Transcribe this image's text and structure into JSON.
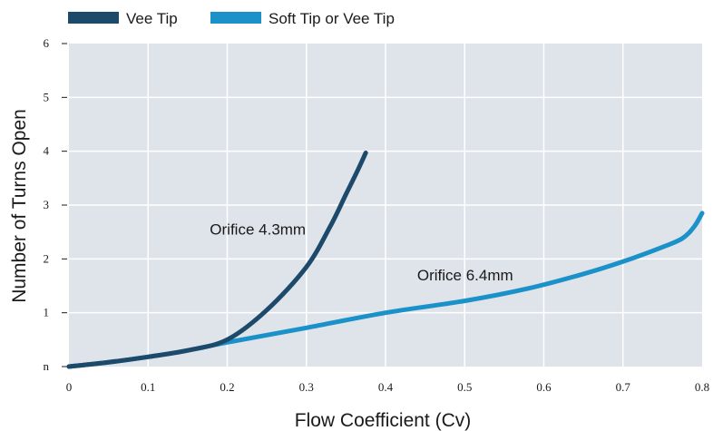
{
  "chart_data": {
    "type": "line",
    "xlabel": "Flow Coefficient (Cv)",
    "ylabel": "Number of Turns Open",
    "xlim": [
      0,
      0.8
    ],
    "ylim": [
      0,
      6
    ],
    "x_ticks": [
      "0",
      "0.1",
      "0.2",
      "0.3",
      "0.4",
      "0.5",
      "0.6",
      "0.7",
      "0.8"
    ],
    "y_ticks": [
      "n",
      "1",
      "2",
      "3",
      "4",
      "5",
      "6"
    ],
    "grid": true,
    "legend_position": "top-left",
    "background_color": "#dfe3ea",
    "series": [
      {
        "name": "Vee Tip",
        "color": "#1d4a6b",
        "x": [
          0,
          0.05,
          0.1,
          0.15,
          0.2,
          0.25,
          0.3,
          0.33,
          0.35,
          0.365,
          0.375
        ],
        "y": [
          0,
          0.08,
          0.18,
          0.3,
          0.5,
          1.05,
          1.85,
          2.6,
          3.2,
          3.65,
          3.97
        ]
      },
      {
        "name": "Soft Tip or Vee Tip",
        "color": "#1a91c9",
        "x": [
          0,
          0.05,
          0.1,
          0.15,
          0.2,
          0.3,
          0.4,
          0.5,
          0.58,
          0.65,
          0.7,
          0.75,
          0.775,
          0.79,
          0.8
        ],
        "y": [
          0,
          0.08,
          0.18,
          0.3,
          0.45,
          0.72,
          1.0,
          1.22,
          1.45,
          1.72,
          1.95,
          2.22,
          2.38,
          2.6,
          2.85
        ]
      }
    ],
    "annotations": [
      {
        "text": "Orifice 4.3mm",
        "x": 0.178,
        "y": 2.45
      },
      {
        "text": "Orifice 6.4mm",
        "x": 0.44,
        "y": 1.6
      }
    ]
  }
}
